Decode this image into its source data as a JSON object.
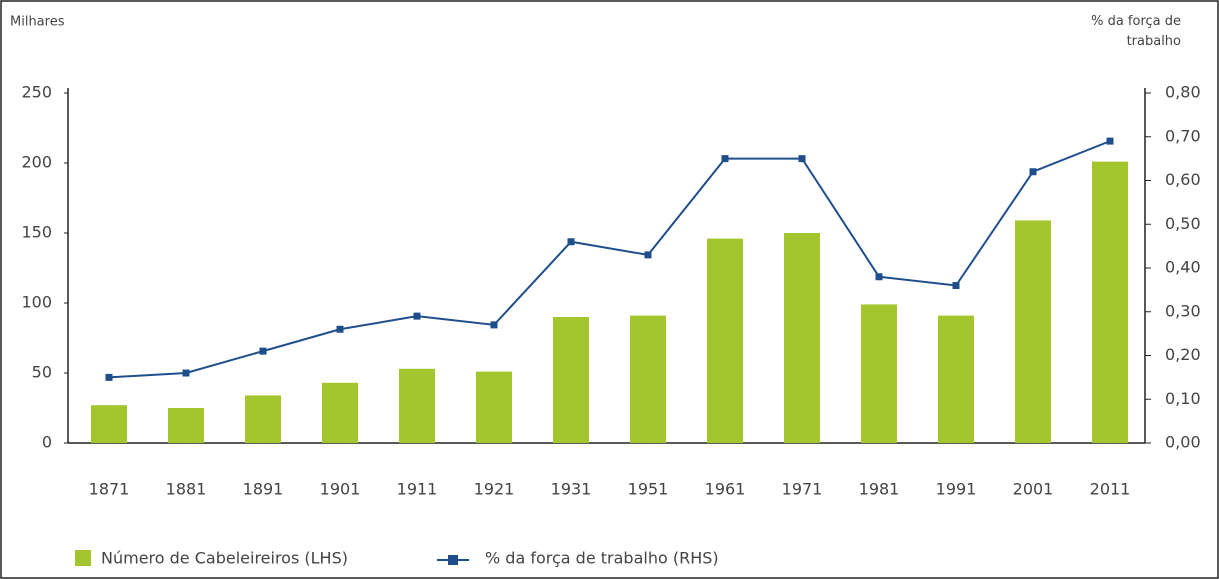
{
  "chart_data": {
    "type": "bar_line",
    "ylabel": "Milhares",
    "y2label": "% da força de trabalho",
    "categories": [
      "1871",
      "1881",
      "1891",
      "1901",
      "1911",
      "1921",
      "1931",
      "1951",
      "1961",
      "1971",
      "1981",
      "1991",
      "2001",
      "2011"
    ],
    "series": [
      {
        "name": "Número de Cabeleireiros (LHS)",
        "type": "bar",
        "color": "#a3c52d",
        "values": [
          27,
          25,
          34,
          43,
          53,
          51,
          90,
          91,
          146,
          150,
          99,
          91,
          159,
          201
        ]
      },
      {
        "name": "% da força de trabalho (RHS)",
        "type": "line",
        "axis": "y2",
        "color": "#1f4e8c",
        "values": [
          0.15,
          0.16,
          0.21,
          0.26,
          0.29,
          0.27,
          0.46,
          0.43,
          0.65,
          0.65,
          0.38,
          0.36,
          0.62,
          0.69
        ]
      }
    ],
    "ylim": [
      0,
      250
    ],
    "yticks": [
      0,
      50,
      100,
      150,
      200,
      250
    ],
    "y2lim": [
      0,
      0.8
    ],
    "y2ticks": [
      {
        "value": 0,
        "label": "0,00"
      },
      {
        "value": 0.1,
        "label": "0,10"
      },
      {
        "value": 0.2,
        "label": "0,20"
      },
      {
        "value": 0.3,
        "label": "0,30"
      },
      {
        "value": 0.4,
        "label": "0,40"
      },
      {
        "value": 0.5,
        "label": "0,50"
      },
      {
        "value": 0.6,
        "label": "0,60"
      },
      {
        "value": 0.7,
        "label": "0,70"
      },
      {
        "value": 0.8,
        "label": "0,80"
      }
    ]
  }
}
